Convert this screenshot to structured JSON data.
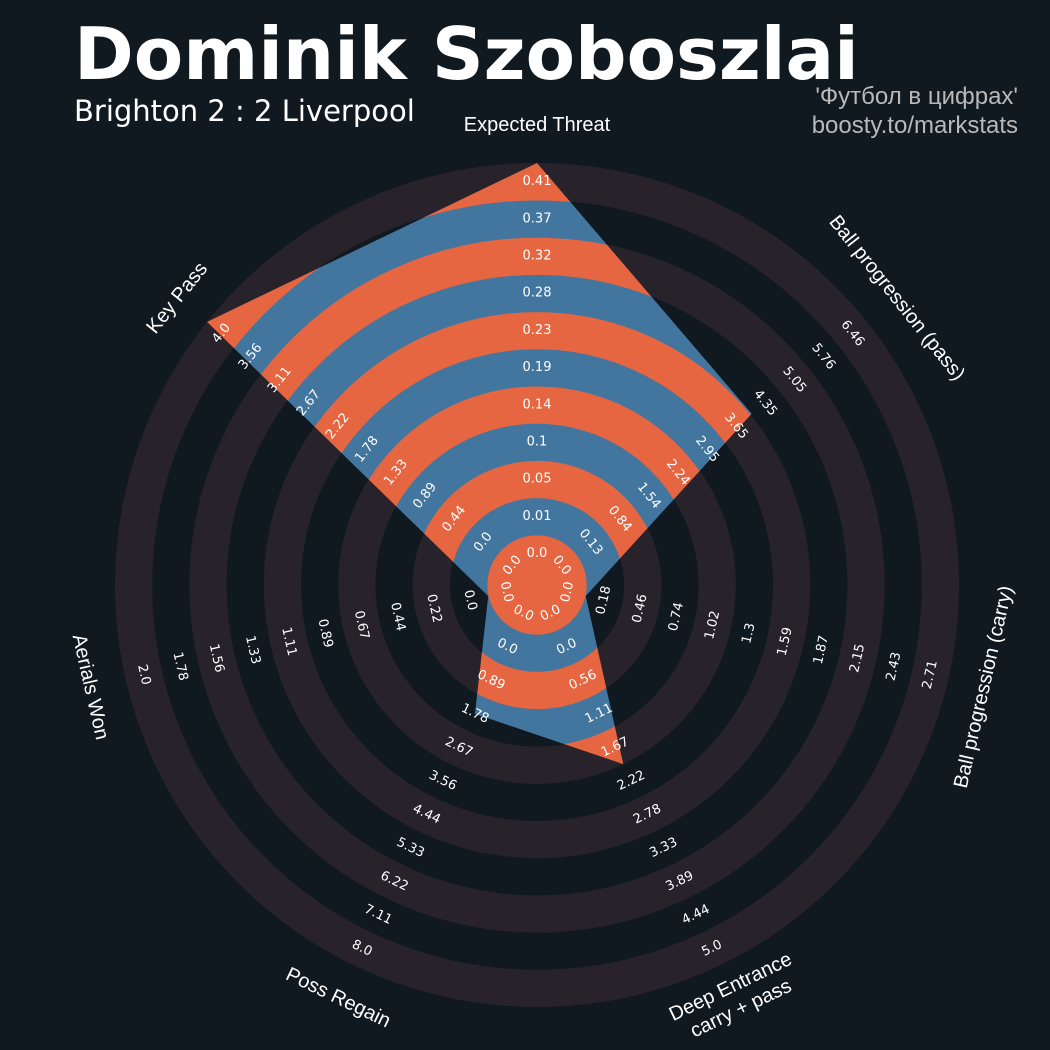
{
  "header": {
    "title": "Dominik Szoboszlai",
    "subtitle": "Brighton 2 : 2 Liverpool",
    "credit_line1": "'Футбол в цифрах'",
    "credit_line2": "boosty.to/markstats"
  },
  "colors": {
    "background": "#101820",
    "ring": "#28232a",
    "polygon_band_blue": "#43769f",
    "polygon_band_orange": "#e66641",
    "text": "#ffffff"
  },
  "chart_data": {
    "type": "radar",
    "params": [
      {
        "label": "Expected Threat",
        "value": 0.41,
        "ticks": [
          "0.0",
          "0.01",
          "0.05",
          "0.1",
          "0.14",
          "0.19",
          "0.23",
          "0.28",
          "0.32",
          "0.37",
          "0.41"
        ]
      },
      {
        "label": "Ball progression (pass)",
        "value": 3.9,
        "ticks": [
          "0.0",
          "0.13",
          "0.84",
          "1.54",
          "2.24",
          "2.95",
          "3.65",
          "4.35",
          "5.05",
          "5.76",
          "6.46"
        ]
      },
      {
        "label": "Ball progression (carry)",
        "value": 0.0,
        "ticks": [
          "0.0",
          "0.18",
          "0.46",
          "0.74",
          "1.02",
          "1.3",
          "1.59",
          "1.87",
          "2.15",
          "2.43",
          "2.71"
        ]
      },
      {
        "label": "Deep Entrance\ncarry + pass",
        "value": 2.0,
        "ticks": [
          "0.0",
          "0.0",
          "0.56",
          "1.11",
          "1.67",
          "2.22",
          "2.78",
          "3.33",
          "3.89",
          "4.44",
          "5.0"
        ]
      },
      {
        "label": "Poss Regain",
        "value": 2.0,
        "ticks": [
          "0.0",
          "0.0",
          "0.89",
          "1.78",
          "2.67",
          "3.56",
          "4.44",
          "5.33",
          "6.22",
          "7.11",
          "8.0"
        ]
      },
      {
        "label": "Aerials Won",
        "value": 0.0,
        "ticks": [
          "0.0",
          "0.0",
          "0.22",
          "0.44",
          "0.67",
          "0.89",
          "1.11",
          "1.33",
          "1.56",
          "1.78",
          "2.0"
        ]
      },
      {
        "label": "Key Pass",
        "value": 4.0,
        "ticks": [
          "0.0",
          "0.0",
          "0.44",
          "0.89",
          "1.33",
          "1.78",
          "2.22",
          "2.67",
          "3.11",
          "3.56",
          "4.0"
        ]
      }
    ]
  }
}
